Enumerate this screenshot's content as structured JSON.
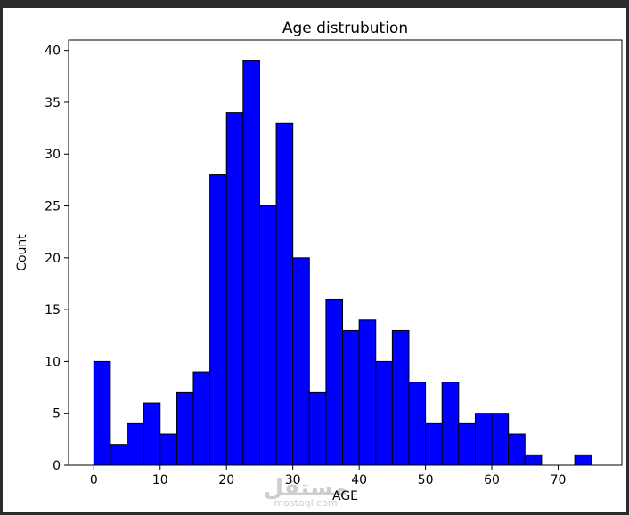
{
  "chart_data": {
    "type": "bar",
    "title": "Age distrubution",
    "xlabel": "AGE",
    "ylabel": "Count",
    "xlim": [
      -3.8,
      79.6
    ],
    "ylim": [
      0,
      41
    ],
    "x_ticks": [
      0,
      10,
      20,
      30,
      40,
      50,
      60,
      70
    ],
    "y_ticks": [
      0,
      5,
      10,
      15,
      20,
      25,
      30,
      35,
      40
    ],
    "bin_width": 2.5,
    "bin_start": 0,
    "values": [
      10,
      2,
      4,
      6,
      3,
      7,
      9,
      28,
      34,
      39,
      25,
      33,
      20,
      7,
      16,
      13,
      14,
      10,
      13,
      8,
      4,
      8,
      4,
      5,
      5,
      3,
      1,
      0,
      0,
      1
    ],
    "bar_color": "#0000ff",
    "edge_color": "#000000",
    "grid": false
  },
  "watermark": {
    "logo_text": "مستقل",
    "site_text": "mostaql.com"
  }
}
